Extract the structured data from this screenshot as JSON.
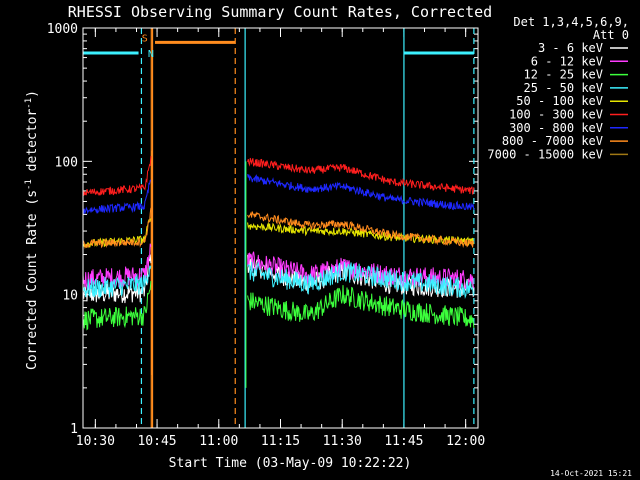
{
  "chart_data": {
    "type": "line",
    "title": "RHESSI Observing Summary Count Rates, Corrected",
    "xlabel": "Start Time (03-May-09 10:22:22)",
    "ylabel_parts": [
      "Corrected Count Rate (s",
      "-1",
      " detector",
      "-1",
      ")"
    ],
    "yscale": "log",
    "ylim": [
      1,
      1000
    ],
    "xlim_minutes": [
      5,
      101
    ],
    "x_ticks": [
      {
        "label": "10:30",
        "min": 8
      },
      {
        "label": "10:45",
        "min": 23
      },
      {
        "label": "11:00",
        "min": 38
      },
      {
        "label": "11:15",
        "min": 53
      },
      {
        "label": "11:30",
        "min": 68
      },
      {
        "label": "11:45",
        "min": 83
      },
      {
        "label": "12:00",
        "min": 98
      }
    ],
    "y_ticks": [
      {
        "label": "1",
        "v": 1
      },
      {
        "label": "10",
        "v": 10
      },
      {
        "label": "100",
        "v": 100
      },
      {
        "label": "1000",
        "v": 1000
      }
    ],
    "legend": {
      "header": [
        "Det 1,3,4,5,6,9,",
        "Att 0"
      ],
      "entries": [
        {
          "label": "3 - 6 keV",
          "color": "#ffffff"
        },
        {
          "label": "6 - 12 keV",
          "color": "#ff3cff"
        },
        {
          "label": "12 - 25 keV",
          "color": "#3cff3c"
        },
        {
          "label": "25 - 50 keV",
          "color": "#3cf0ff"
        },
        {
          "label": "50 - 100 keV",
          "color": "#e6e600"
        },
        {
          "label": "100 - 300 keV",
          "color": "#ff1e1e"
        },
        {
          "label": "300 - 800 keV",
          "color": "#1e28ff"
        },
        {
          "label": "800 - 7000 keV",
          "color": "#ff8c1e"
        },
        {
          "label": "7000 - 15000 keV",
          "color": "#a07814"
        }
      ]
    },
    "series_segments": [
      {
        "name": "3 - 6 keV",
        "color": "#ffffff",
        "before": {
          "t": [
            5,
            20,
            21.5
          ],
          "v": [
            10,
            10.5,
            20
          ]
        },
        "after": {
          "t": [
            45,
            60,
            68,
            80,
            100
          ],
          "v": [
            17,
            12,
            15,
            12,
            11
          ]
        }
      },
      {
        "name": "6 - 12 keV",
        "color": "#ff3cff",
        "before": {
          "t": [
            5,
            20,
            21.5
          ],
          "v": [
            13,
            14,
            22
          ]
        },
        "after": {
          "t": [
            45,
            60,
            68,
            80,
            100
          ],
          "v": [
            18,
            14,
            16,
            14,
            13
          ]
        }
      },
      {
        "name": "12 - 25 keV",
        "color": "#3cff3c",
        "before": {
          "t": [
            5,
            20,
            21.5
          ],
          "v": [
            6.5,
            7,
            12
          ]
        },
        "after": {
          "t": [
            45,
            60,
            68,
            80,
            100
          ],
          "v": [
            9,
            7,
            10,
            8,
            6.5
          ]
        }
      },
      {
        "name": "25 - 50 keV",
        "color": "#3cf0ff",
        "before": {
          "t": [
            5,
            20,
            21.5
          ],
          "v": [
            11,
            12,
            18
          ]
        },
        "after": {
          "t": [
            45,
            60,
            68,
            80,
            100
          ],
          "v": [
            15,
            12,
            15,
            13,
            11
          ]
        }
      },
      {
        "name": "50 - 100 keV",
        "color": "#e6e600",
        "before": {
          "t": [
            5,
            20,
            21.5
          ],
          "v": [
            24,
            26,
            40
          ]
        },
        "after": {
          "t": [
            45,
            60,
            68,
            80,
            100
          ],
          "v": [
            33,
            30,
            30,
            27,
            25
          ]
        }
      },
      {
        "name": "100 - 300 keV",
        "color": "#ff1e1e",
        "before": {
          "t": [
            5,
            20,
            21.5
          ],
          "v": [
            58,
            63,
            105
          ]
        },
        "after": {
          "t": [
            45,
            60,
            68,
            80,
            100
          ],
          "v": [
            100,
            85,
            90,
            70,
            60
          ]
        }
      },
      {
        "name": "300 - 800 keV",
        "color": "#1e28ff",
        "before": {
          "t": [
            5,
            20,
            21.5
          ],
          "v": [
            43,
            46,
            75
          ]
        },
        "after": {
          "t": [
            45,
            60,
            68,
            80,
            100
          ],
          "v": [
            75,
            62,
            65,
            52,
            45
          ]
        }
      },
      {
        "name": "800 - 7000 keV",
        "color": "#ff8c1e",
        "before": {
          "t": [
            5,
            20,
            21.5
          ],
          "v": [
            24,
            25,
            42
          ]
        },
        "after": {
          "t": [
            45,
            60,
            68,
            80,
            100
          ],
          "v": [
            40,
            33,
            34,
            28,
            24
          ]
        }
      }
    ],
    "attenuator_flags": [
      {
        "color": "#3cf0ff",
        "t": [
          5,
          18.5
        ],
        "v": 650,
        "label": ""
      },
      {
        "color": "#3cf0ff",
        "t": [
          83,
          100
        ],
        "v": 650,
        "label": ""
      },
      {
        "color": "#ff8c1e",
        "t": [
          22.5,
          42
        ],
        "v": 780,
        "label": ""
      }
    ],
    "flag_labels": [
      {
        "text": "S",
        "color": "#ff8c1e",
        "t": 20,
        "v": 850
      },
      {
        "text": "N",
        "color": "#3cf0ff",
        "t": 21.5,
        "v": 650
      }
    ],
    "vlines": [
      {
        "t": 19.2,
        "color": "#3cf0ff",
        "style": "dashed"
      },
      {
        "t": 21.6,
        "color": "#ff8c1e",
        "style": "solid"
      },
      {
        "t": 21.9,
        "color": "#ff8c1e",
        "style": "solid"
      },
      {
        "t": 42,
        "color": "#ff8c1e",
        "style": "dashed"
      },
      {
        "t": 44.4,
        "color": "#3cf0ff",
        "style": "solid"
      },
      {
        "t": 83,
        "color": "#3cf0ff",
        "style": "solid"
      },
      {
        "t": 100,
        "color": "#3cf0ff",
        "style": "dashed"
      }
    ],
    "footer": "14-Oct-2021 15:21"
  }
}
